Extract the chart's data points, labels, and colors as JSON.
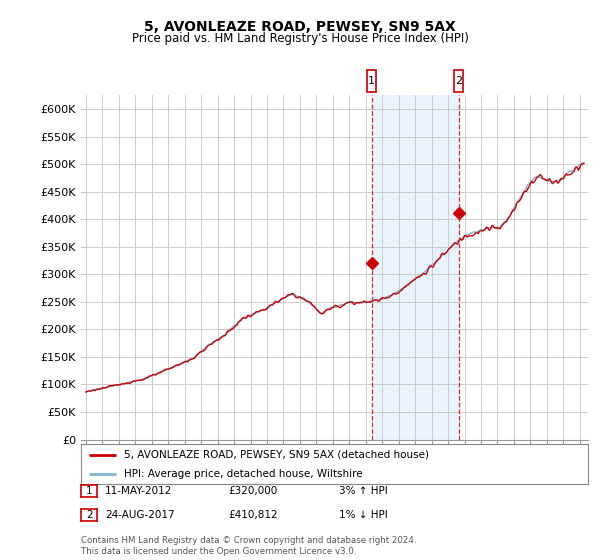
{
  "title": "5, AVONLEAZE ROAD, PEWSEY, SN9 5AX",
  "subtitle": "Price paid vs. HM Land Registry's House Price Index (HPI)",
  "ylabel_ticks": [
    "£0",
    "£50K",
    "£100K",
    "£150K",
    "£200K",
    "£250K",
    "£300K",
    "£350K",
    "£400K",
    "£450K",
    "£500K",
    "£550K",
    "£600K"
  ],
  "ylim": [
    0,
    625000
  ],
  "yticks": [
    0,
    50000,
    100000,
    150000,
    200000,
    250000,
    300000,
    350000,
    400000,
    450000,
    500000,
    550000,
    600000
  ],
  "background_color": "#ffffff",
  "plot_bg_color": "#ffffff",
  "grid_color": "#cccccc",
  "legend_label_red": "5, AVONLEAZE ROAD, PEWSEY, SN9 5AX (detached house)",
  "legend_label_blue": "HPI: Average price, detached house, Wiltshire",
  "marker1_label": "1",
  "marker1_date": "11-MAY-2012",
  "marker1_price": "£320,000",
  "marker1_hpi": "3% ↑ HPI",
  "marker1_x": 2012.36,
  "marker1_y": 320000,
  "marker2_label": "2",
  "marker2_date": "24-AUG-2017",
  "marker2_price": "£410,812",
  "marker2_hpi": "1% ↓ HPI",
  "marker2_x": 2017.65,
  "marker2_y": 410812,
  "footnote": "Contains HM Land Registry data © Crown copyright and database right 2024.\nThis data is licensed under the Open Government Licence v3.0.",
  "shaded_region_start": 2012.36,
  "shaded_region_end": 2017.65,
  "red_line_color": "#cc0000",
  "blue_line_color": "#7fb3d3",
  "shaded_color": "#ddeeff",
  "xlim_start": 1994.7,
  "xlim_end": 2025.5
}
